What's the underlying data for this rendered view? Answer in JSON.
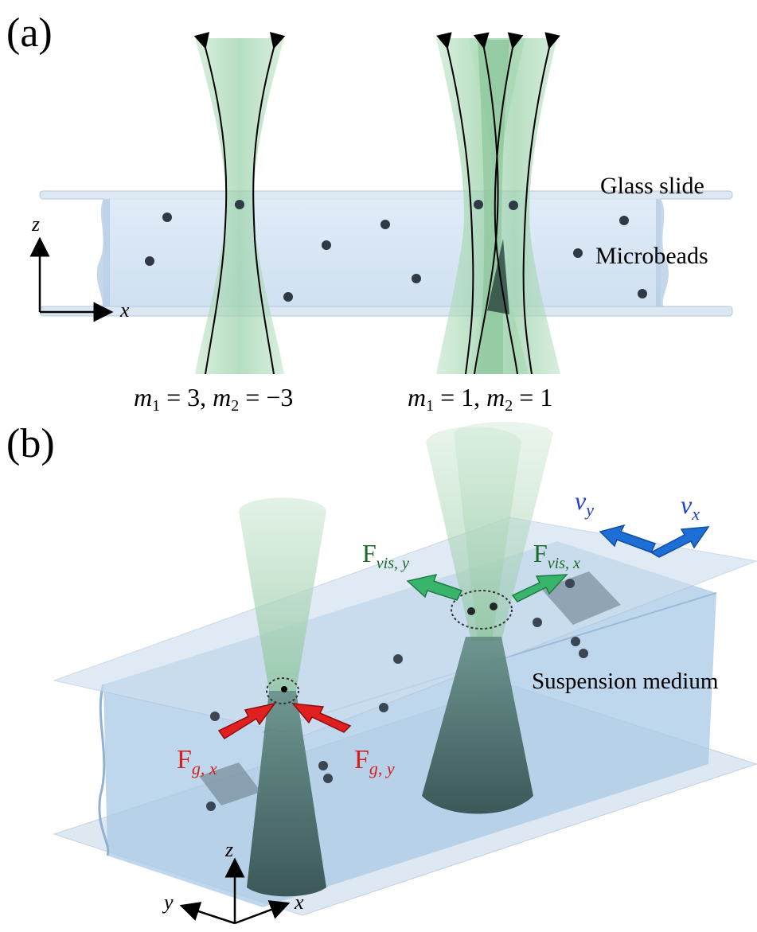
{
  "panel_a": {
    "label": "(a)",
    "glass_slide": "Glass slide",
    "microbeads": "Microbeads",
    "axis_z": "z",
    "axis_x": "x",
    "caption_left": {
      "m1": "m",
      "m1_sub": "1",
      "eq1": " = 3, ",
      "m2": "m",
      "m2_sub": "2",
      "eq2": " = −3"
    },
    "caption_right": {
      "m1": "m",
      "m1_sub": "1",
      "eq1": " = 1, ",
      "m2": "m",
      "m2_sub": "2",
      "eq2": " = 1"
    }
  },
  "panel_b": {
    "label": "(b)",
    "suspension": "Suspension medium",
    "v_y": {
      "main": "v",
      "sub": "y"
    },
    "v_x": {
      "main": "v",
      "sub": "x"
    },
    "f_vis_y": {
      "main": "F",
      "sub": "vis, y"
    },
    "f_vis_x": {
      "main": "F",
      "sub": "vis, x"
    },
    "f_g_x": {
      "main": "F",
      "sub": "g, x"
    },
    "f_g_y": {
      "main": "F",
      "sub": "g, y"
    },
    "axis_z": "z",
    "axis_y": "y",
    "axis_x": "x"
  },
  "colors": {
    "beam": "#a8d8b4",
    "beam_dark": "#3f5a58",
    "glass": "#c9dcef",
    "medium": "#a9c9e6",
    "bead": "#2f3a45",
    "velocity": "#1d6fd6",
    "viscous": "#2e7d32",
    "gradient": "#d61f1f"
  }
}
